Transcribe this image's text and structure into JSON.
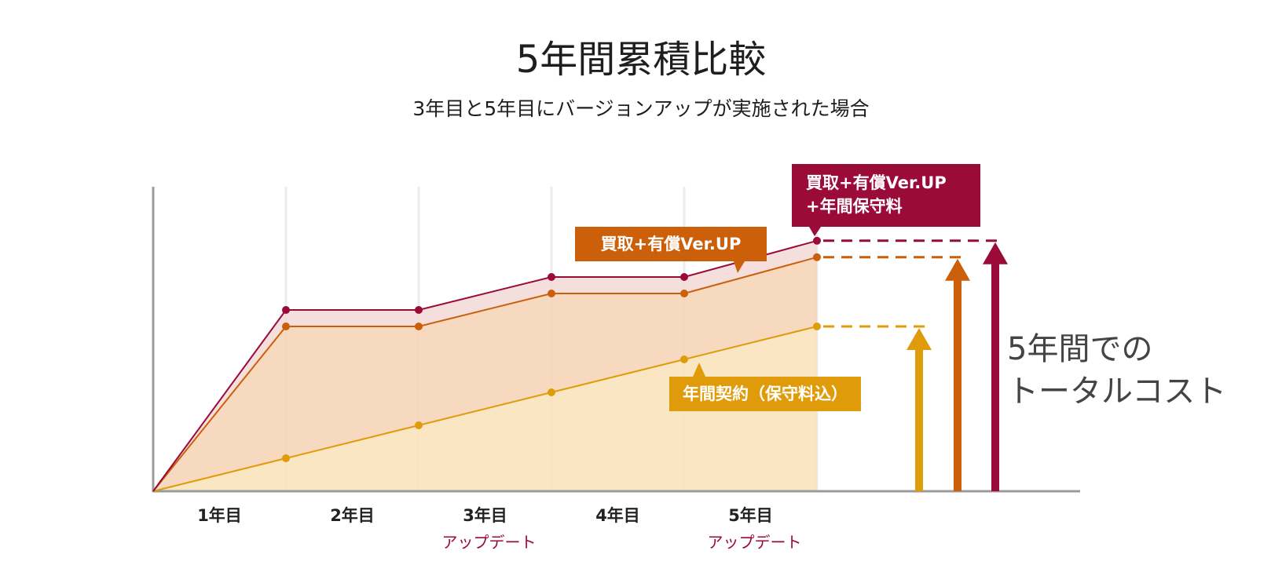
{
  "title": "5年間累積比較",
  "subtitle": "3年目と5年目にバージョンアップが実施された場合",
  "total_label": [
    "5年間での",
    "トータルコスト"
  ],
  "callouts": {
    "buy_up_maint": [
      "買取+有償Ver.UP",
      "+年間保守料"
    ],
    "buy_up": "買取+有償Ver.UP",
    "annual": "年間契約（保守料込）"
  },
  "colors": {
    "buy_up_maint": "#9b0b3a",
    "buy_up": "#cc5f0a",
    "annual": "#e09b0a",
    "fill_buy_up_maint": "#f3dcd9",
    "fill_buy_up": "#f5d5b8",
    "fill_annual": "#f9e3bc",
    "axis": "#9b9b9b",
    "update_label": "#9b0b3a"
  },
  "chart_data": {
    "type": "area",
    "categories": [
      "1年目",
      "2年目",
      "3年目",
      "4年目",
      "5年目"
    ],
    "category_notes": [
      "",
      "",
      "アップデート",
      "",
      "アップデート"
    ],
    "x": [
      0,
      1,
      2,
      3,
      4,
      5
    ],
    "series": [
      {
        "key": "buy_up_maint",
        "values": [
          0,
          55,
          55,
          65,
          65,
          76
        ]
      },
      {
        "key": "buy_up",
        "values": [
          0,
          50,
          50,
          60,
          60,
          71
        ]
      },
      {
        "key": "annual",
        "values": [
          0,
          10,
          20,
          30,
          40,
          50
        ]
      }
    ],
    "ylim": [
      0,
      100
    ],
    "grid": "vertical",
    "legend": "callouts"
  }
}
